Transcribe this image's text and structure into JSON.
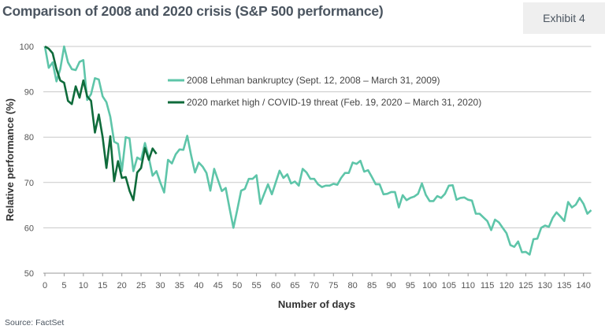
{
  "header": {
    "title": "Comparison of 2008 and 2020 crisis (S&P 500 performance)",
    "exhibit": "Exhibit 4"
  },
  "footer": {
    "source": "Source: FactSet"
  },
  "chart_data": {
    "type": "line",
    "title": "Comparison of 2008 and 2020 crisis (S&P 500 performance)",
    "xlabel": "Number of days",
    "ylabel": "Relative performance (%)",
    "xlim": [
      0,
      142
    ],
    "ylim": [
      50,
      100
    ],
    "xticks": [
      0,
      5,
      10,
      15,
      20,
      25,
      30,
      35,
      40,
      45,
      50,
      55,
      60,
      65,
      70,
      75,
      80,
      85,
      90,
      95,
      100,
      105,
      110,
      115,
      120,
      125,
      130,
      135,
      140
    ],
    "yticks": [
      50,
      60,
      70,
      80,
      90,
      100
    ],
    "grid": "horizontal",
    "legend_position": "top-center",
    "series": [
      {
        "name": "2008 Lehman bankruptcy (Sept. 12, 2008 – March 31, 2009)",
        "color": "#5ec5a9",
        "values": [
          100,
          95.3,
          96.5,
          92.3,
          95,
          100,
          96.5,
          95,
          94.8,
          96.6,
          97,
          88.2,
          89.5,
          93,
          92.7,
          89,
          87.7,
          84.5,
          79,
          78.5,
          72.5,
          80,
          79.7,
          72.5,
          75.5,
          75,
          78.7,
          75.5,
          71.5,
          72.5,
          70,
          67.8,
          75,
          74.2,
          76.2,
          77.3,
          77.2,
          80.3,
          76,
          72.2,
          74.4,
          73.5,
          72.1,
          68.2,
          73,
          70.5,
          68.1,
          68.8,
          64.3,
          60,
          64,
          68.2,
          68.6,
          70.8,
          70.8,
          71.6,
          65.3,
          67.5,
          69.6,
          67.4,
          70,
          72.6,
          71,
          71.8,
          69.8,
          70.2,
          69.3,
          73,
          72.2,
          70.8,
          70.8,
          69.6,
          69,
          69.3,
          69.3,
          69.7,
          69.5,
          71,
          72.1,
          72.1,
          74.4,
          74.1,
          74.8,
          72.4,
          72.7,
          71.2,
          69.6,
          69.6,
          67.4,
          67.5,
          67.9,
          67.9,
          64.5,
          67.2,
          66.1,
          66.6,
          66.9,
          67.5,
          69.8,
          67.3,
          65.9,
          65.9,
          67,
          66.6,
          67.5,
          69.3,
          69.4,
          66.2,
          66.6,
          66.7,
          66.2,
          66,
          63.1,
          63.1,
          62.3,
          61.5,
          59.5,
          61.8,
          61.2,
          60,
          58.8,
          56.2,
          55.8,
          57,
          54.6,
          54.7,
          54.1,
          57.5,
          57.6,
          60,
          60.5,
          60.2,
          62.2,
          63.4,
          62.5,
          61.5,
          65.7,
          64.5,
          65.1,
          66.6,
          65.3,
          63.1,
          63.9
        ]
      },
      {
        "name": "2020 market high / COVID-19 threat (Feb. 19, 2020 – March 31, 2020)",
        "color": "#0f6b3b",
        "values": [
          100,
          99.5,
          98.5,
          95,
          92.5,
          92,
          88,
          87.3,
          91.2,
          88.7,
          92.5,
          89,
          88,
          81,
          85,
          80,
          73.2,
          80.2,
          70.3,
          74.7,
          71,
          71.2,
          68.2,
          66.1,
          72.2,
          73.2,
          77.6,
          75,
          77.5,
          76.3
        ]
      }
    ]
  }
}
